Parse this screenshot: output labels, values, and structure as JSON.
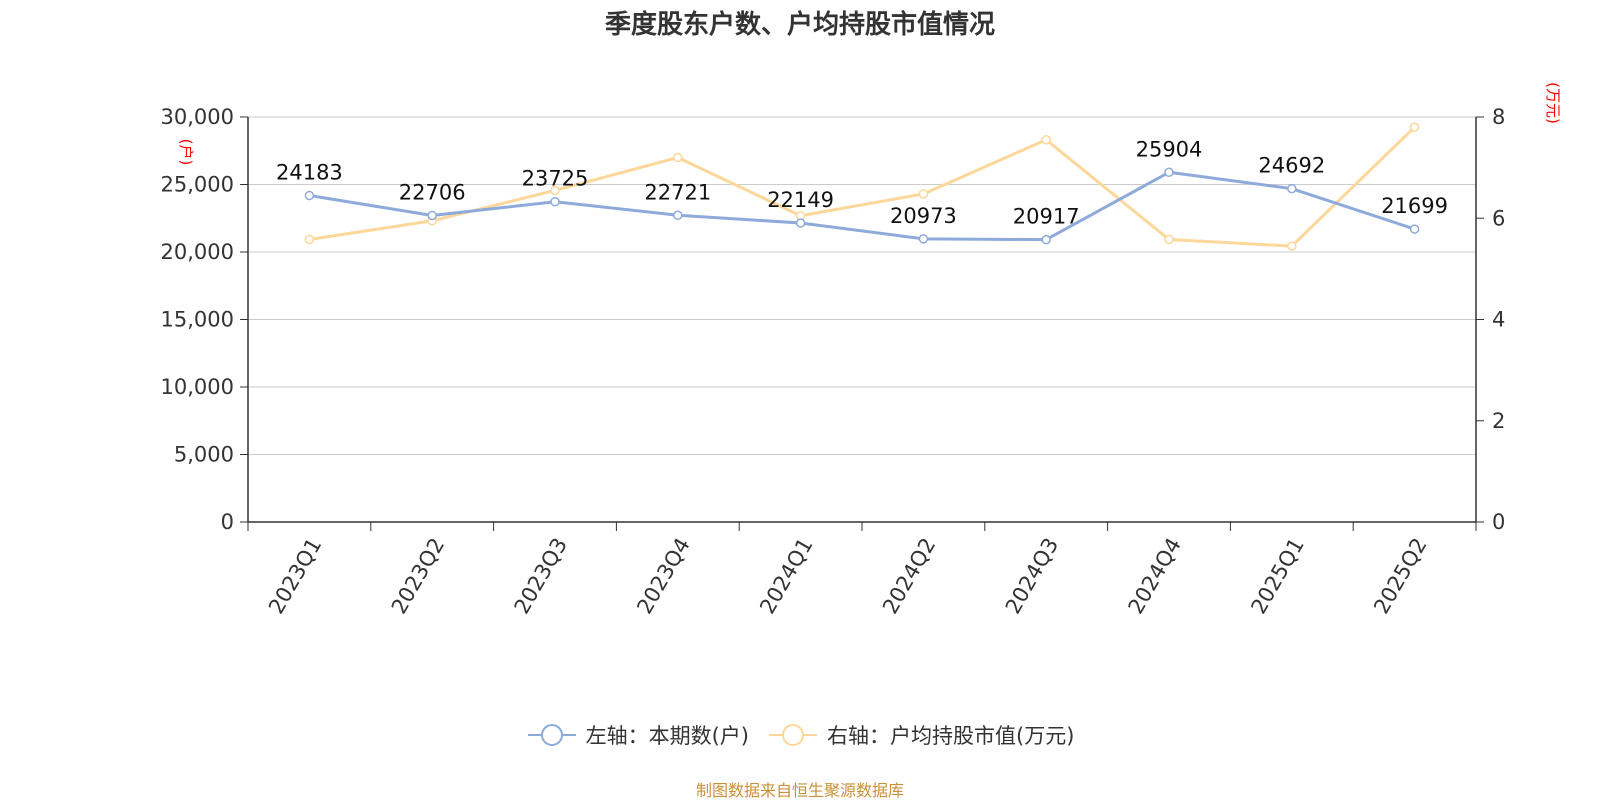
{
  "title": "季度股东户数、户均持股市值情况",
  "source": "制图数据来自恒生聚源数据库",
  "colors": {
    "left": "#8eaadb",
    "right": "#fdd79a",
    "axis_unit": "#ff0000"
  },
  "chart_data": {
    "type": "line",
    "title": "季度股东户数、户均持股市值情况",
    "categories": [
      "2023Q1",
      "2023Q2",
      "2023Q3",
      "2023Q4",
      "2024Q1",
      "2024Q2",
      "2024Q3",
      "2024Q4",
      "2025Q1",
      "2025Q2"
    ],
    "left_axis": {
      "unit": "(户)",
      "min": 0,
      "max": 30000,
      "ticks": [
        "0",
        "5,000",
        "10,000",
        "15,000",
        "20,000",
        "25,000",
        "30,000"
      ]
    },
    "right_axis": {
      "unit": "(万元)",
      "min": 0,
      "max": 8,
      "ticks": [
        "0",
        "2",
        "4",
        "6",
        "8"
      ]
    },
    "series": [
      {
        "name": "左轴：本期数(户)",
        "axis": "left",
        "values": [
          24183,
          22706,
          23725,
          22721,
          22149,
          20973,
          20917,
          25904,
          24692,
          21699
        ],
        "labels": [
          "24183",
          "22706",
          "23725",
          "22721",
          "22149",
          "20973",
          "20917",
          "25904",
          "24692",
          "21699"
        ]
      },
      {
        "name": "右轴：户均持股市值(万元)",
        "axis": "right",
        "values": [
          5.58,
          5.95,
          6.55,
          7.2,
          6.05,
          6.48,
          7.55,
          5.58,
          5.45,
          7.8
        ]
      }
    ],
    "grid": true,
    "legend": "bottom-center"
  }
}
